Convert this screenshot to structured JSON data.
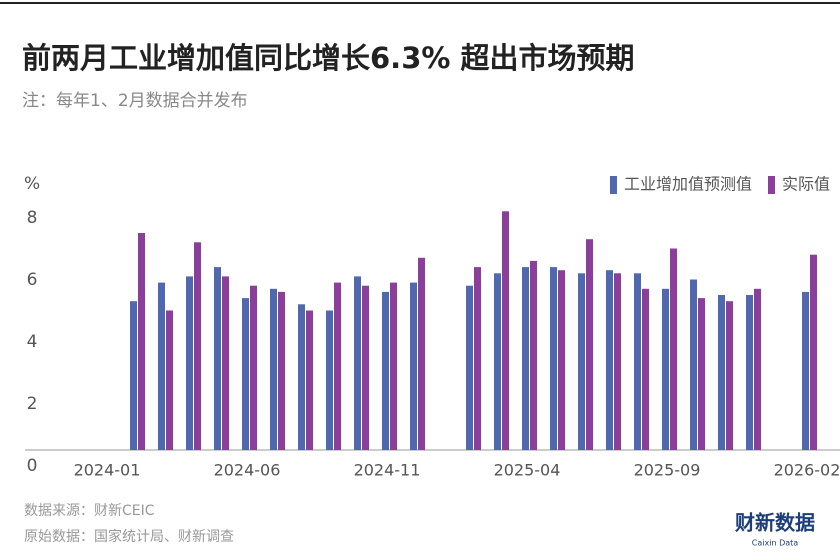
{
  "header": {
    "title": "前两月工业增加值同比增长6.3% 超出市场预期",
    "subtitle": "注：每年1、2月数据合并发布"
  },
  "chart_data": {
    "type": "bar",
    "y_unit": "%",
    "categories": [
      "2024-01",
      null,
      null,
      null,
      null,
      "2024-06",
      null,
      null,
      null,
      null,
      "2024-11",
      null,
      null,
      null,
      null,
      "2025-04",
      null,
      null,
      null,
      null,
      "2025-09",
      null,
      null,
      null,
      null,
      "2026-02"
    ],
    "series": [
      {
        "name": "工业增加值预测值",
        "color": "#4f68ae",
        "values": [
          null,
          4.8,
          5.4,
          5.6,
          5.9,
          4.9,
          5.2,
          4.7,
          4.5,
          5.6,
          5.1,
          5.4,
          null,
          5.3,
          5.7,
          5.9,
          5.9,
          5.7,
          5.8,
          5.7,
          5.2,
          5.5,
          5.0,
          5.0,
          null,
          5.1
        ]
      },
      {
        "name": "实际值",
        "color": "#8a3f9b",
        "values": [
          null,
          7.0,
          4.5,
          6.7,
          5.6,
          5.3,
          5.1,
          4.5,
          5.4,
          5.3,
          5.4,
          6.2,
          null,
          5.9,
          7.7,
          6.1,
          5.8,
          6.8,
          5.7,
          5.2,
          6.5,
          4.9,
          4.8,
          5.2,
          null,
          6.3
        ]
      }
    ],
    "ylim": [
      0,
      8
    ],
    "yticks": [
      0,
      2,
      4,
      6,
      8
    ],
    "grid": false,
    "legend": "top-right"
  },
  "footer": {
    "source": "数据来源：财新CEIC",
    "raw": "原始数据：国家统计局、财新调查",
    "logo": "财新数据",
    "logo_sub": "Caixin Data"
  }
}
